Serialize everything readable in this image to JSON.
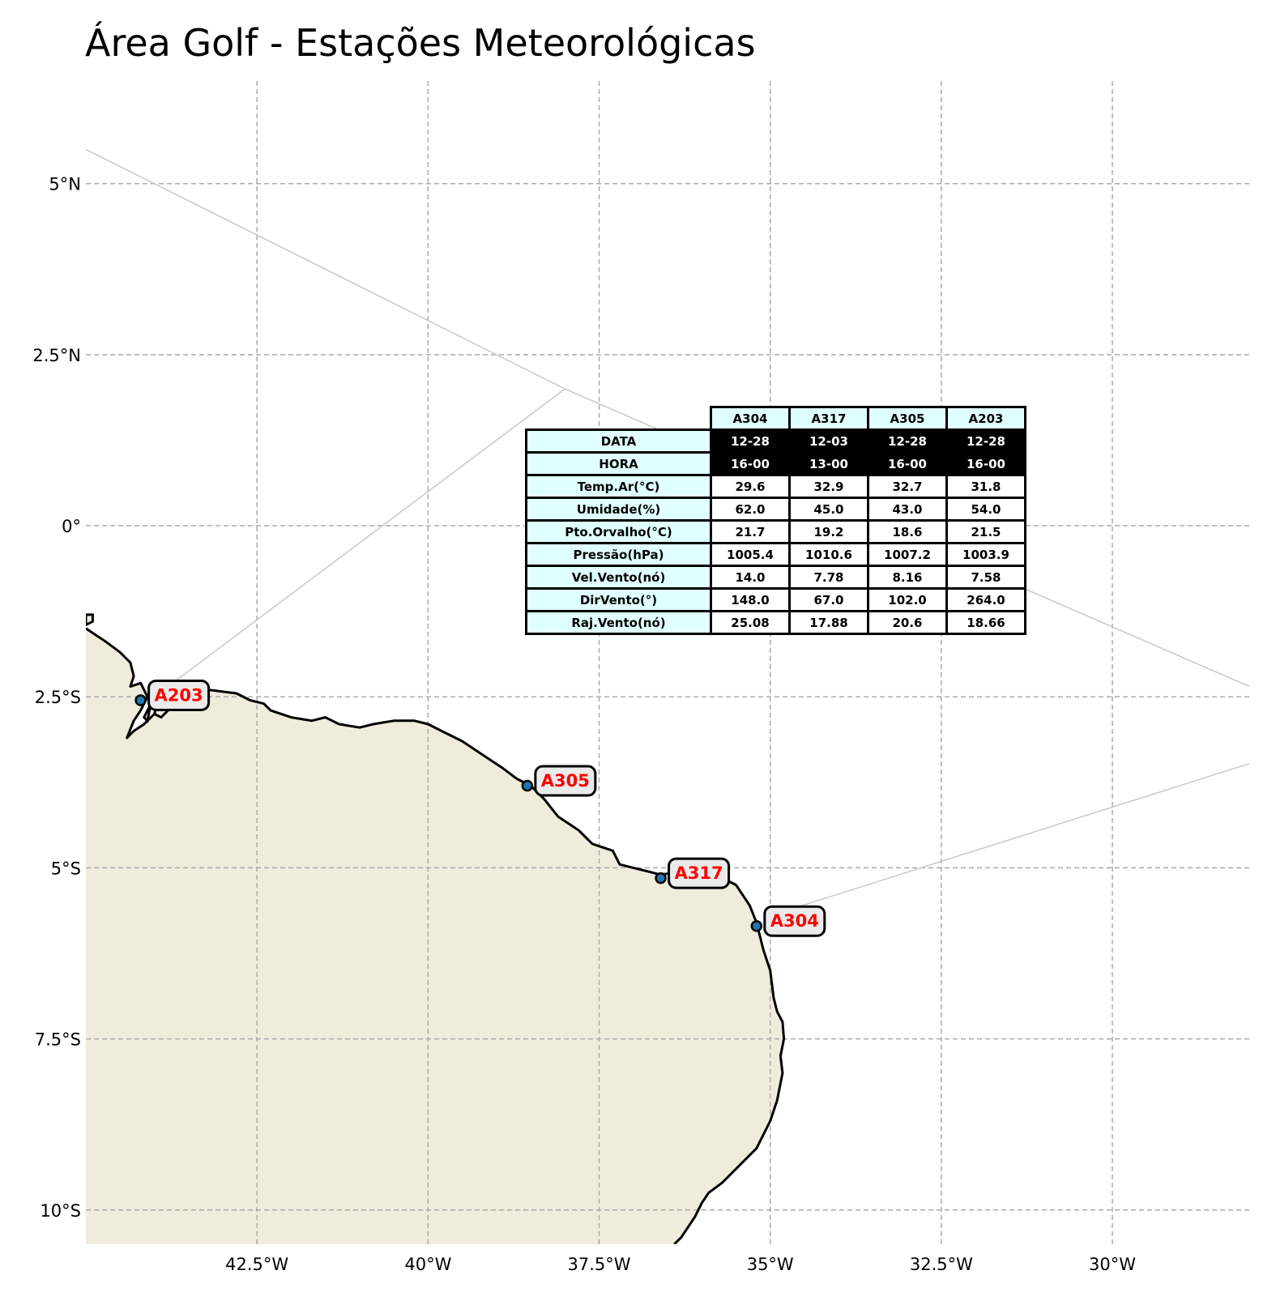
{
  "title": "Área Golf - Estações Meteorológicas",
  "map": {
    "extent": {
      "lon_min": -45.0,
      "lon_max": -28.0,
      "lat_min": -10.5,
      "lat_max": 6.5
    },
    "land_color": "#efecdc",
    "coast_color": "#000000",
    "grid_color": "#aaaaaa",
    "area_outline_color": "#c8c8c8",
    "lon_ticks": [
      {
        "value": -42.5,
        "label": "42.5°W"
      },
      {
        "value": -40.0,
        "label": "40°W"
      },
      {
        "value": -37.5,
        "label": "37.5°W"
      },
      {
        "value": -35.0,
        "label": "35°W"
      },
      {
        "value": -32.5,
        "label": "32.5°W"
      },
      {
        "value": -30.0,
        "label": "30°W"
      }
    ],
    "lat_ticks": [
      {
        "value": 5.0,
        "label": "5°N"
      },
      {
        "value": 2.5,
        "label": "2.5°N"
      },
      {
        "value": 0.0,
        "label": "0°"
      },
      {
        "value": -2.5,
        "label": "2.5°S"
      },
      {
        "value": -5.0,
        "label": "5°S"
      },
      {
        "value": -7.5,
        "label": "7.5°S"
      },
      {
        "value": -10.0,
        "label": "10°S"
      }
    ],
    "area_outline": [
      [
        -45.0,
        5.5
      ],
      [
        -38.0,
        2.0
      ],
      [
        -44.0,
        -2.5
      ]
    ],
    "area_outline_2": [
      [
        -38.0,
        2.0
      ],
      [
        -26.5,
        -3.0
      ],
      [
        -35.0,
        -5.7
      ]
    ],
    "area_outline_3": [
      [
        -26.5,
        -3.0
      ],
      [
        -26.5,
        -10.0
      ],
      [
        -27.5,
        -11.0
      ]
    ],
    "coastline": [
      [
        -45.0,
        -1.5
      ],
      [
        -44.7,
        -1.7
      ],
      [
        -44.5,
        -1.85
      ],
      [
        -44.35,
        -2.0
      ],
      [
        -44.3,
        -2.2
      ],
      [
        -44.35,
        -2.35
      ],
      [
        -44.2,
        -2.3
      ],
      [
        -44.1,
        -2.5
      ],
      [
        -44.2,
        -2.7
      ],
      [
        -44.3,
        -2.85
      ],
      [
        -44.4,
        -3.1
      ],
      [
        -44.3,
        -3.0
      ],
      [
        -44.15,
        -2.9
      ],
      [
        -44.0,
        -2.75
      ],
      [
        -43.8,
        -2.55
      ],
      [
        -43.5,
        -2.5
      ],
      [
        -43.2,
        -2.4
      ],
      [
        -42.8,
        -2.45
      ],
      [
        -42.6,
        -2.55
      ],
      [
        -42.4,
        -2.6
      ],
      [
        -42.3,
        -2.7
      ],
      [
        -42.0,
        -2.8
      ],
      [
        -41.7,
        -2.85
      ],
      [
        -41.5,
        -2.8
      ],
      [
        -41.3,
        -2.9
      ],
      [
        -41.0,
        -2.95
      ],
      [
        -40.8,
        -2.9
      ],
      [
        -40.5,
        -2.85
      ],
      [
        -40.2,
        -2.85
      ],
      [
        -40.0,
        -2.9
      ],
      [
        -39.8,
        -3.0
      ],
      [
        -39.5,
        -3.15
      ],
      [
        -39.2,
        -3.35
      ],
      [
        -38.9,
        -3.55
      ],
      [
        -38.7,
        -3.7
      ],
      [
        -38.5,
        -3.8
      ],
      [
        -38.3,
        -4.0
      ],
      [
        -38.1,
        -4.25
      ],
      [
        -37.8,
        -4.45
      ],
      [
        -37.6,
        -4.65
      ],
      [
        -37.3,
        -4.75
      ],
      [
        -37.2,
        -4.95
      ],
      [
        -37.0,
        -5.0
      ],
      [
        -36.8,
        -5.05
      ],
      [
        -36.6,
        -5.1
      ],
      [
        -36.4,
        -5.07
      ],
      [
        -36.0,
        -5.05
      ],
      [
        -35.8,
        -5.1
      ],
      [
        -35.5,
        -5.25
      ],
      [
        -35.3,
        -5.55
      ],
      [
        -35.2,
        -5.8
      ],
      [
        -35.1,
        -6.2
      ],
      [
        -35.0,
        -6.5
      ],
      [
        -34.95,
        -6.9
      ],
      [
        -34.9,
        -7.1
      ],
      [
        -34.82,
        -7.25
      ],
      [
        -34.8,
        -7.5
      ],
      [
        -34.85,
        -7.75
      ],
      [
        -34.82,
        -8.0
      ],
      [
        -34.9,
        -8.4
      ],
      [
        -35.0,
        -8.7
      ],
      [
        -35.2,
        -9.1
      ],
      [
        -35.5,
        -9.4
      ],
      [
        -35.7,
        -9.6
      ],
      [
        -35.9,
        -9.75
      ],
      [
        -36.0,
        -9.9
      ],
      [
        -36.1,
        -10.1
      ],
      [
        -36.3,
        -10.4
      ],
      [
        -36.4,
        -10.5
      ]
    ],
    "island_1": [
      [
        -45.0,
        -1.3
      ],
      [
        -44.9,
        -1.3
      ],
      [
        -44.9,
        -1.4
      ],
      [
        -45.0,
        -1.45
      ]
    ],
    "island_2": [
      [
        -44.0,
        -2.75
      ],
      [
        -43.9,
        -2.8
      ],
      [
        -43.8,
        -2.7
      ],
      [
        -43.95,
        -2.6
      ]
    ],
    "island_3": [
      [
        -44.1,
        -2.85
      ],
      [
        -44.05,
        -2.6
      ],
      [
        -44.15,
        -2.8
      ]
    ],
    "stations": [
      {
        "id": "A203",
        "lon": -44.2,
        "lat": -2.55
      },
      {
        "id": "A305",
        "lon": -38.55,
        "lat": -3.8
      },
      {
        "id": "A317",
        "lon": -36.6,
        "lat": -5.15
      },
      {
        "id": "A304",
        "lon": -35.2,
        "lat": -5.85
      }
    ],
    "station_marker_color": "#1f77b4",
    "station_label_color": "#ff0000",
    "station_label_bg": "#ebebeb"
  },
  "table": {
    "columns": [
      "A304",
      "A317",
      "A305",
      "A203"
    ],
    "rows": [
      {
        "label": "DATA",
        "values": [
          "12-28",
          "12-03",
          "12-28",
          "12-28"
        ],
        "dark": true
      },
      {
        "label": "HORA",
        "values": [
          "16-00",
          "13-00",
          "16-00",
          "16-00"
        ],
        "dark": true
      },
      {
        "label": "Temp.Ar(°C)",
        "values": [
          "29.6",
          "32.9",
          "32.7",
          "31.8"
        ],
        "dark": false
      },
      {
        "label": "Umidade(%)",
        "values": [
          "62.0",
          "45.0",
          "43.0",
          "54.0"
        ],
        "dark": false
      },
      {
        "label": "Pto.Orvalho(°C)",
        "values": [
          "21.7",
          "19.2",
          "18.6",
          "21.5"
        ],
        "dark": false
      },
      {
        "label": "Pressão(hPa)",
        "values": [
          "1005.4",
          "1010.6",
          "1007.2",
          "1003.9"
        ],
        "dark": false
      },
      {
        "label": "Vel.Vento(nó)",
        "values": [
          "14.0",
          "7.78",
          "8.16",
          "7.58"
        ],
        "dark": false
      },
      {
        "label": "DirVento(°)",
        "values": [
          "148.0",
          "67.0",
          "102.0",
          "264.0"
        ],
        "dark": false
      },
      {
        "label": "Raj.Vento(nó)",
        "values": [
          "25.08",
          "17.88",
          "20.6",
          "18.66"
        ],
        "dark": false
      }
    ]
  }
}
